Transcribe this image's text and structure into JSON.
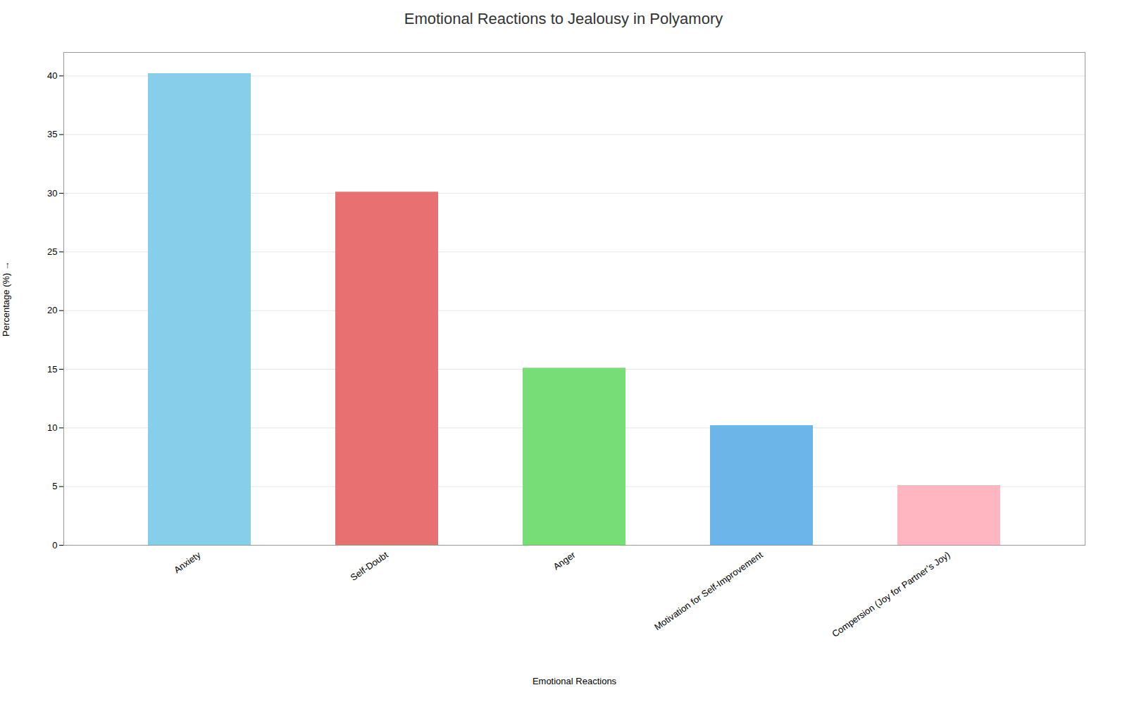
{
  "chart_data": {
    "type": "bar",
    "title": "Emotional Reactions to Jealousy in Polyamory",
    "xlabel": "Emotional Reactions",
    "ylabel": "Percentage (%)",
    "categories": [
      "Anxiety",
      "Self-Doubt",
      "Anger",
      "Motivation for Self-Improvement",
      "Compersion (Joy for Partner’s Joy)"
    ],
    "values": [
      40.2,
      30.1,
      15.1,
      10.2,
      5.1
    ],
    "colors": [
      "#87CEEB",
      "#E87070",
      "#77DD77",
      "#6BB5E8",
      "#FFB6C1"
    ],
    "ylim": [
      0,
      42
    ],
    "yticks": [
      0,
      5,
      10,
      15,
      20,
      25,
      30,
      35,
      40
    ],
    "grid": true
  }
}
